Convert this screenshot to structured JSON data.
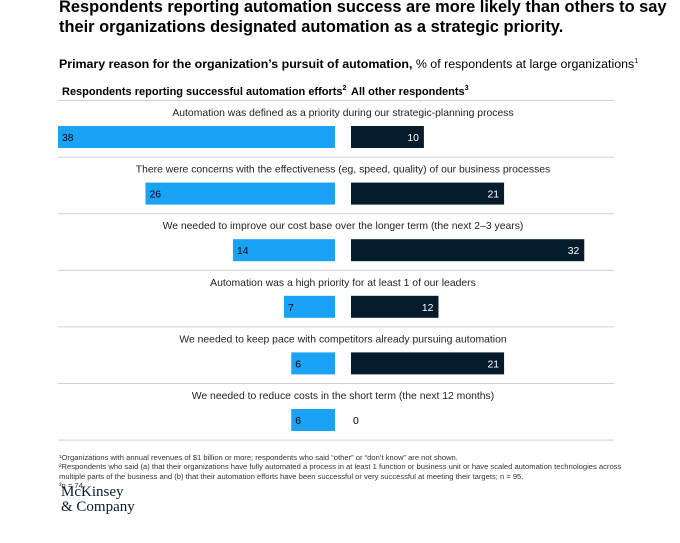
{
  "title": "Respondents reporting automation success are more likely than others to say their organizations designated automation as a strategic priority.",
  "subtitle": {
    "bold": "Primary reason for the organization’s pursuit of automation,",
    "rest": " % of respondents at large organizations",
    "sup": "1"
  },
  "column_headers": {
    "left": "Respondents reporting successful automation efforts",
    "left_sup": "2",
    "right": "All other respondents",
    "right_sup": "3"
  },
  "colors": {
    "successful": "#1aa3f5",
    "others": "#051c2c",
    "divider": "#d0d0d0"
  },
  "chart_data": {
    "type": "bar",
    "orientation": "horizontal-diverging",
    "title": "Primary reason for the organization’s pursuit of automation, % of respondents at large organizations",
    "categories": [
      "Automation was defined as a priority during our strategic-planning process",
      "There were concerns with the effectiveness (eg, speed, quality) of our business processes",
      "We needed to improve our cost base over the longer term (the next 2–3 years)",
      "Automation was a high priority for at least 1 of our leaders",
      "We needed to keep pace with competitors already pursuing automation",
      "We needed to reduce costs in the short term (the next 12 months)"
    ],
    "series": [
      {
        "name": "Respondents reporting successful automation efforts",
        "values": [
          38,
          26,
          14,
          7,
          6,
          6
        ]
      },
      {
        "name": "All other respondents",
        "values": [
          10,
          21,
          32,
          12,
          21,
          0
        ]
      }
    ],
    "xlabel": "",
    "ylabel": "% of respondents",
    "xlim": [
      0,
      38
    ]
  },
  "footnotes": [
    "¹Organizations with annual revenues of $1 billion or more; respondents who said “other” or “don’t know” are not shown.",
    "²Respondents who said (a) that their organizations have fully automated a process in at least 1 function or business unit or have scaled automation technologies across multiple parts of the business and (b) that their automation efforts have been successful or very successful at meeting their targets; n = 95.",
    "³n = 74."
  ],
  "logo": {
    "line1": "McKinsey",
    "line2": "& Company"
  }
}
